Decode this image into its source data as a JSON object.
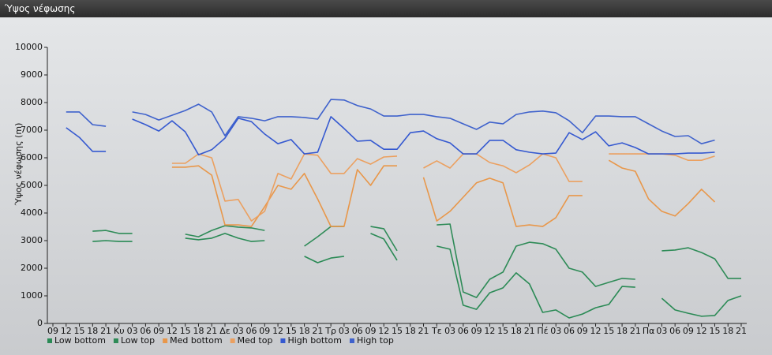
{
  "chart_data": {
    "type": "line",
    "title": "Ύψος νέφωσης",
    "ylabel": "Ύψος νέφωσης (m)",
    "categories": [
      "09",
      "12",
      "15",
      "18",
      "21",
      "Κυ",
      "03",
      "06",
      "09",
      "12",
      "15",
      "18",
      "21",
      "Δε",
      "03",
      "06",
      "09",
      "12",
      "15",
      "18",
      "21",
      "Τρ",
      "03",
      "06",
      "09",
      "12",
      "15",
      "18",
      "21",
      "Τε",
      "03",
      "06",
      "09",
      "12",
      "15",
      "18",
      "21",
      "Πέ",
      "03",
      "06",
      "09",
      "12",
      "15",
      "18",
      "21",
      "Πα",
      "03",
      "06",
      "09",
      "12",
      "15",
      "18",
      "21"
    ],
    "ylim": [
      0,
      10000
    ],
    "yticks": [
      0,
      1000,
      2000,
      3000,
      4000,
      5000,
      6000,
      7000,
      8000,
      9000,
      10000
    ],
    "grid": false,
    "series": [
      {
        "name": "Low bottom",
        "color": "#2a8a55",
        "values": [
          null,
          null,
          null,
          2970,
          3000,
          2970,
          2970,
          null,
          null,
          null,
          3090,
          3030,
          3090,
          3260,
          3090,
          2970,
          3000,
          null,
          null,
          2430,
          2200,
          2370,
          2430,
          null,
          3260,
          3060,
          2290,
          null,
          null,
          2800,
          2690,
          660,
          510,
          1110,
          1290,
          1830,
          1430,
          400,
          490,
          200,
          340,
          570,
          690,
          1340,
          1310,
          null,
          910,
          490,
          370,
          260,
          290,
          830,
          1000
        ]
      },
      {
        "name": "Low top",
        "color": "#2e8b57",
        "values": [
          null,
          null,
          null,
          3340,
          3370,
          3260,
          3260,
          null,
          null,
          null,
          3230,
          3140,
          3370,
          3540,
          3490,
          3460,
          3370,
          null,
          null,
          2800,
          3140,
          3510,
          3510,
          null,
          3510,
          3430,
          2630,
          null,
          null,
          3570,
          3600,
          1140,
          940,
          1600,
          1860,
          2800,
          2940,
          2890,
          2690,
          2000,
          1860,
          1340,
          1490,
          1630,
          1600,
          null,
          2630,
          2660,
          2740,
          2570,
          2340,
          1630,
          1630
        ]
      },
      {
        "name": "Med bottom",
        "color": "#e8974a",
        "values": [
          null,
          null,
          null,
          null,
          null,
          null,
          null,
          null,
          null,
          5660,
          5660,
          5710,
          5370,
          3570,
          3570,
          3510,
          4230,
          5000,
          4860,
          5430,
          4510,
          3510,
          3510,
          5570,
          5000,
          5710,
          5710,
          null,
          5290,
          3710,
          4060,
          4570,
          5090,
          5260,
          5090,
          3510,
          3570,
          3510,
          3830,
          4630,
          4630,
          null,
          5910,
          5630,
          5510,
          4510,
          4060,
          3890,
          4340,
          4860,
          4400,
          null,
          null
        ]
      },
      {
        "name": "Med top",
        "color": "#eba060",
        "values": [
          null,
          null,
          null,
          null,
          null,
          null,
          null,
          null,
          null,
          5800,
          5800,
          6140,
          6000,
          4430,
          4490,
          3710,
          4060,
          5430,
          5230,
          6140,
          6090,
          5430,
          5430,
          5970,
          5770,
          6030,
          6060,
          null,
          5630,
          5890,
          5630,
          6140,
          6140,
          5830,
          5710,
          5460,
          5740,
          6140,
          6000,
          5140,
          5140,
          null,
          6140,
          6140,
          6140,
          6140,
          6140,
          6090,
          5910,
          5910,
          6060,
          null,
          null
        ]
      },
      {
        "name": "High bottom",
        "color": "#3559d0",
        "values": [
          null,
          7090,
          6740,
          6230,
          6230,
          null,
          7400,
          7200,
          6970,
          7340,
          6940,
          6110,
          6290,
          6710,
          7430,
          7310,
          6860,
          6510,
          6660,
          6140,
          6200,
          7490,
          7060,
          6600,
          6630,
          6310,
          6310,
          6910,
          6970,
          6690,
          6540,
          6140,
          6140,
          6630,
          6630,
          6290,
          6200,
          6140,
          6170,
          6910,
          6660,
          6940,
          6430,
          6540,
          6370,
          6140,
          6140,
          6140,
          6170,
          6170,
          6200,
          null,
          null
        ]
      },
      {
        "name": "High top",
        "color": "#3f62cc",
        "values": [
          null,
          7660,
          7660,
          7200,
          7140,
          null,
          7660,
          7570,
          7370,
          7540,
          7710,
          7940,
          7660,
          6800,
          7490,
          7430,
          7340,
          7490,
          7490,
          7460,
          7400,
          8110,
          8090,
          7890,
          7770,
          7510,
          7510,
          7570,
          7570,
          7490,
          7430,
          7230,
          7030,
          7290,
          7230,
          7570,
          7660,
          7690,
          7630,
          7340,
          6910,
          7510,
          7510,
          7490,
          7490,
          7230,
          6970,
          6770,
          6800,
          6510,
          6640,
          null,
          null
        ]
      }
    ]
  }
}
